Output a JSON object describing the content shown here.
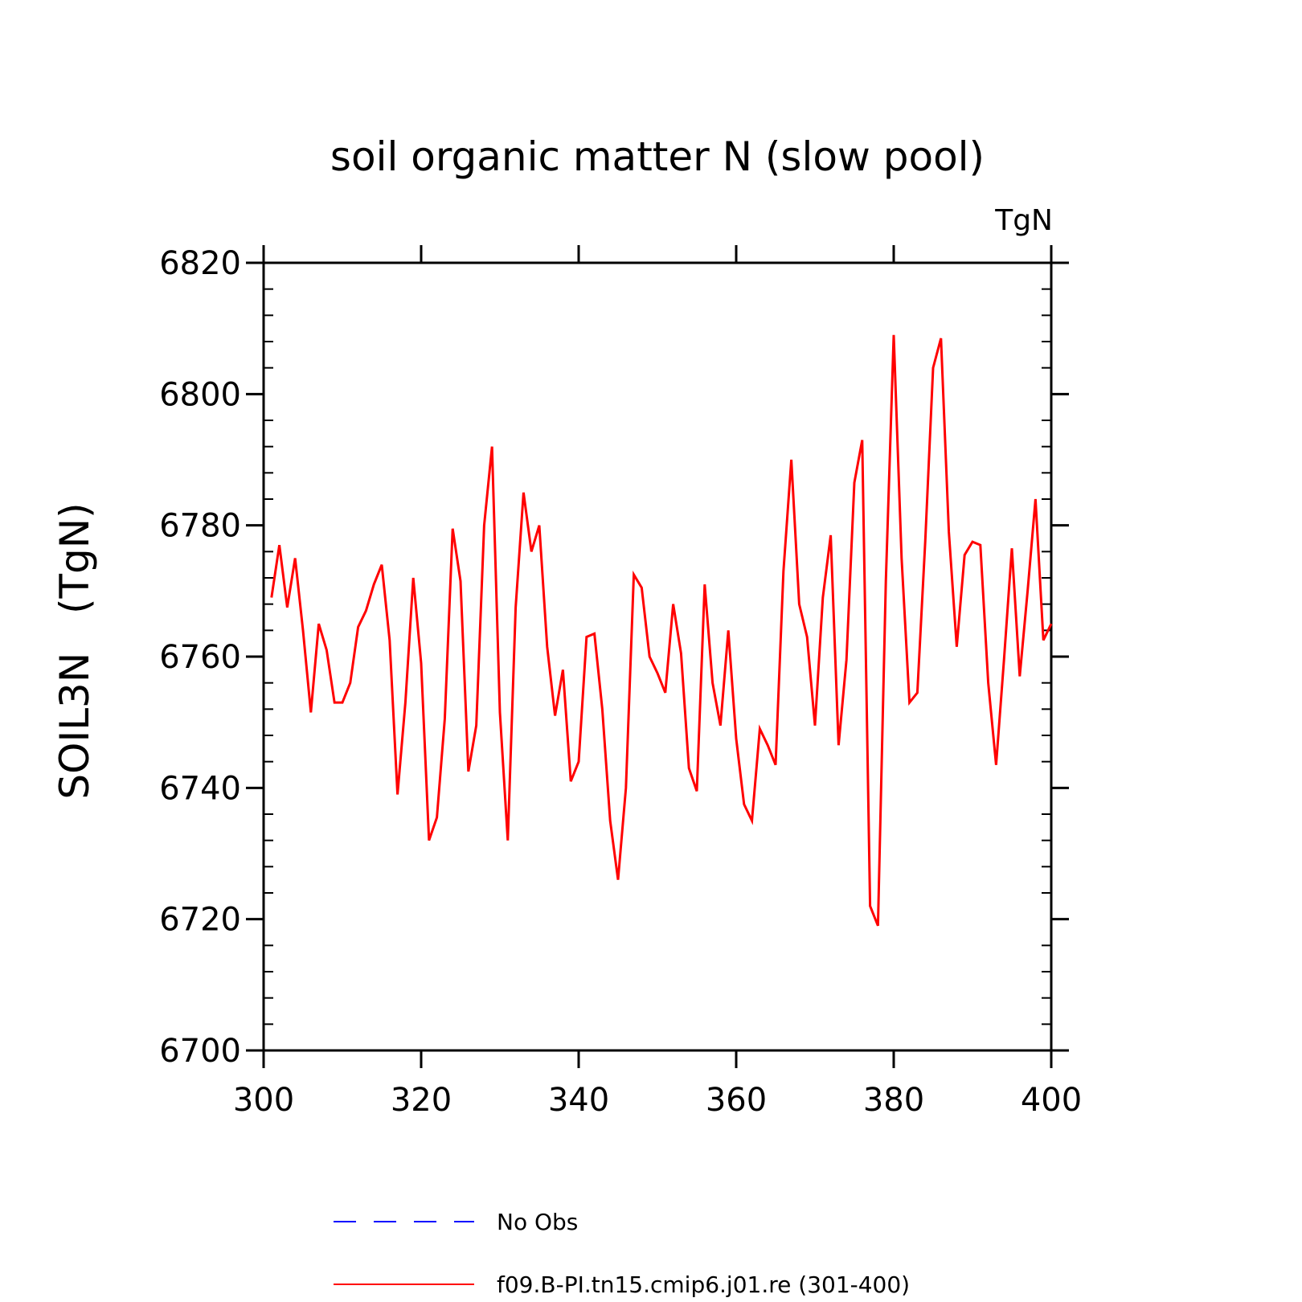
{
  "chart_data": {
    "type": "line",
    "title": "soil organic matter N (slow pool)",
    "units": "TgN",
    "ylabel": "SOIL3N   (TgN)",
    "xlabel": "",
    "xlim": [
      300,
      400
    ],
    "ylim": [
      6700,
      6820
    ],
    "xticks": [
      "300",
      "320",
      "340",
      "360",
      "380",
      "400"
    ],
    "yticks": [
      "6700",
      "6720",
      "6740",
      "6760",
      "6780",
      "6800",
      "6820"
    ],
    "series": [
      {
        "name": "f09.B-PI.tn15.cmip6.j01.re (301-400)",
        "color": "#ff0000",
        "x": [
          301,
          302,
          303,
          304,
          305,
          306,
          307,
          308,
          309,
          310,
          311,
          312,
          313,
          314,
          315,
          316,
          317,
          318,
          319,
          320,
          321,
          322,
          323,
          324,
          325,
          326,
          327,
          328,
          329,
          330,
          331,
          332,
          333,
          334,
          335,
          336,
          337,
          338,
          339,
          340,
          341,
          342,
          343,
          344,
          345,
          346,
          347,
          348,
          349,
          350,
          351,
          352,
          353,
          354,
          355,
          356,
          357,
          358,
          359,
          360,
          361,
          362,
          363,
          364,
          365,
          366,
          367,
          368,
          369,
          370,
          371,
          372,
          373,
          374,
          375,
          376,
          377,
          378,
          379,
          380,
          381,
          382,
          383,
          384,
          385,
          386,
          387,
          388,
          389,
          390,
          391,
          392,
          393,
          394,
          395,
          396,
          397,
          398,
          399,
          400
        ],
        "values": [
          6769,
          6777,
          6767.5,
          6775,
          6764,
          6751.5,
          6765,
          6761,
          6753,
          6753,
          6756,
          6764.5,
          6767,
          6771,
          6774,
          6762.5,
          6739,
          6753,
          6772,
          6759,
          6732,
          6735.5,
          6750.5,
          6779.5,
          6771.5,
          6742.5,
          6749.5,
          6780,
          6792,
          6751.5,
          6732,
          6767.5,
          6785,
          6776,
          6780,
          6761.5,
          6751,
          6758,
          6741,
          6744,
          6763,
          6763.5,
          6752,
          6735,
          6726,
          6740,
          6772.5,
          6770.5,
          6760,
          6757.5,
          6754.5,
          6768,
          6760.5,
          6743,
          6739.5,
          6771,
          6756,
          6749.5,
          6764,
          6747.5,
          6737.5,
          6735,
          6749,
          6746.5,
          6743.5,
          6773,
          6790,
          6768,
          6763,
          6749.5,
          6769,
          6778.5,
          6746.5,
          6759.5,
          6786.5,
          6793,
          6722,
          6719,
          6771.5,
          6809,
          6775,
          6753,
          6754.5,
          6777.5,
          6804,
          6808.5,
          6779,
          6761.5,
          6775.5,
          6777.5,
          6777,
          6756,
          6743.5,
          6759.5,
          6776.5,
          6757,
          6770,
          6784,
          6762.5,
          6765
        ]
      }
    ],
    "legend": {
      "position": "bottom",
      "entries": [
        {
          "label": "No Obs",
          "color": "#0000ff",
          "style": "dashed"
        },
        {
          "label": "f09.B-PI.tn15.cmip6.j01.re (301-400)",
          "color": "#ff0000",
          "style": "solid"
        }
      ]
    }
  }
}
